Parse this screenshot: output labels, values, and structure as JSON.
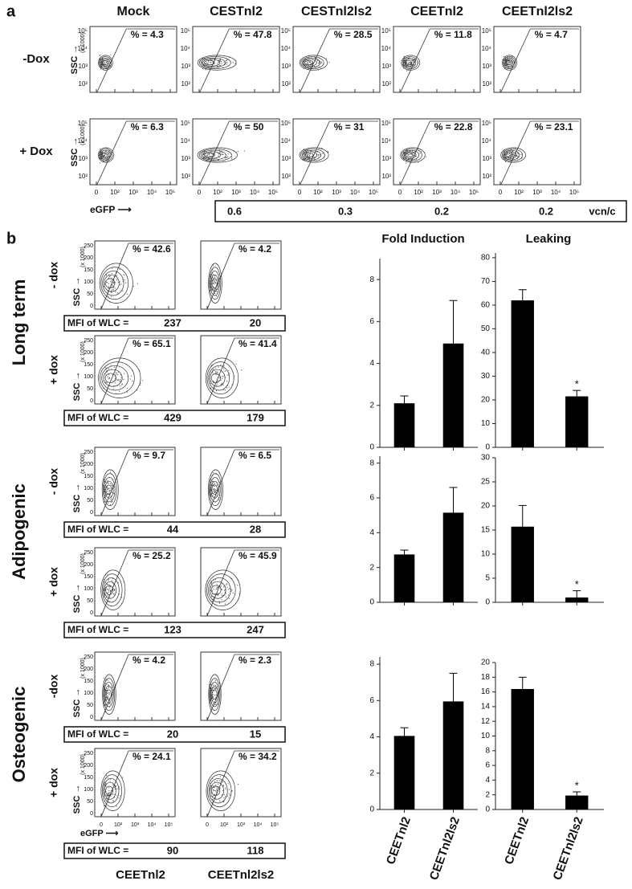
{
  "panel_a": {
    "label": "a",
    "columns": [
      "Mock",
      "CESTnl2",
      "CESTnl2ls2",
      "CEETnl2",
      "CEETnl2ls2"
    ],
    "rows": [
      "-Dox",
      "+ Dox"
    ],
    "percentages": [
      [
        "% = 4.3",
        "% = 47.8",
        "% = 28.5",
        "% = 11.8",
        "% = 4.7"
      ],
      [
        "% = 6.3",
        "% = 50",
        "% = 31",
        "% = 22.8",
        "% = 23.1"
      ]
    ],
    "y_axis_label": "SSC →",
    "y_axis_unit": "(x 1000)",
    "x_axis_label": "eGFP ⟶",
    "y_ticks": [
      "10⁵",
      "10⁴",
      "10³",
      "10²"
    ],
    "x_ticks": [
      "0",
      "10²",
      "10³",
      "10⁴",
      "10⁵"
    ],
    "vcn": [
      0.6,
      0.3,
      0.2,
      0.2
    ],
    "vcn_unit": "vcn/c"
  },
  "panel_b": {
    "label": "b",
    "chart_titles": [
      "Fold Induction",
      "Leaking"
    ],
    "mfi_label": "MFI of WLC =",
    "y_axis_label": "SSC →",
    "y_axis_unit": "(x 1000)",
    "x_axis_label": "eGFP ⟶",
    "y_ticks": [
      250,
      200,
      150,
      100,
      50,
      0
    ],
    "x_ticks": [
      "0",
      "10²",
      "10³",
      "10⁴",
      "10⁵"
    ],
    "columns": [
      "CEETnl2",
      "CEETnl2ls2"
    ],
    "groups": [
      {
        "name": "Long term",
        "rows": [
          {
            "label": "- dox",
            "percentages": [
              "% = 42.6",
              "% = 4.2"
            ],
            "mfi": [
              237,
              20
            ]
          },
          {
            "label": "+ dox",
            "percentages": [
              "% = 65.1",
              "% = 41.4"
            ],
            "mfi": [
              429,
              179
            ]
          }
        ]
      },
      {
        "name": "Adipogenic",
        "rows": [
          {
            "label": "- dox",
            "percentages": [
              "% = 9.7",
              "% = 6.5"
            ],
            "mfi": [
              44,
              28
            ]
          },
          {
            "label": "+ dox",
            "percentages": [
              "% = 25.2",
              "% = 45.9"
            ],
            "mfi": [
              123,
              247
            ]
          }
        ]
      },
      {
        "name": "Osteogenic",
        "rows": [
          {
            "label": "-dox",
            "percentages": [
              "% = 4.2",
              "% = 2.3"
            ],
            "mfi": [
              20,
              15
            ]
          },
          {
            "label": "+ dox",
            "percentages": [
              "% = 24.1",
              "% = 34.2"
            ],
            "mfi": [
              90,
              118
            ]
          }
        ]
      }
    ]
  },
  "chart_data": [
    {
      "type": "bar",
      "categories": [
        null,
        null
      ],
      "values": [
        2.1,
        4.95
      ],
      "errors": [
        0.35,
        2.05
      ],
      "color": "#000000",
      "ylim": [
        0,
        9
      ],
      "yticks": [
        0,
        2,
        4,
        6,
        8
      ]
    },
    {
      "type": "bar",
      "categories": [
        null,
        null
      ],
      "values": [
        62,
        21.5
      ],
      "errors": [
        4.5,
        2.5
      ],
      "annotations": [
        null,
        "*"
      ],
      "color": "#000000",
      "ylim": [
        0,
        82
      ],
      "yticks": [
        0,
        10,
        20,
        30,
        40,
        50,
        60,
        70,
        80
      ]
    },
    {
      "type": "bar",
      "categories": [
        null,
        null
      ],
      "values": [
        2.75,
        5.15
      ],
      "errors": [
        0.25,
        1.45
      ],
      "color": "#000000",
      "ylim": [
        0,
        8.4
      ],
      "yticks": [
        0,
        2,
        4,
        6,
        8
      ]
    },
    {
      "type": "bar",
      "categories": [
        null,
        null
      ],
      "values": [
        15.7,
        1.0
      ],
      "errors": [
        4.4,
        1.4
      ],
      "annotations": [
        null,
        "*"
      ],
      "color": "#000000",
      "ylim": [
        0,
        30
      ],
      "yticks": [
        0,
        5,
        10,
        15,
        20,
        25,
        30
      ]
    },
    {
      "type": "bar",
      "categories": [
        "CEETnl2",
        "CEETnl2ls2"
      ],
      "values": [
        4.05,
        5.95
      ],
      "errors": [
        0.45,
        1.55
      ],
      "color": "#000000",
      "ylim": [
        0,
        8.4
      ],
      "yticks": [
        0,
        2,
        4,
        6,
        8
      ]
    },
    {
      "type": "bar",
      "categories": [
        "CEETnl2",
        "CEETnl2ls2"
      ],
      "values": [
        16.4,
        1.9
      ],
      "errors": [
        1.6,
        0.5
      ],
      "annotations": [
        null,
        "*"
      ],
      "color": "#000000",
      "ylim": [
        0,
        20
      ],
      "yticks": [
        0,
        2,
        4,
        6,
        8,
        10,
        12,
        14,
        16,
        18,
        20
      ]
    }
  ]
}
